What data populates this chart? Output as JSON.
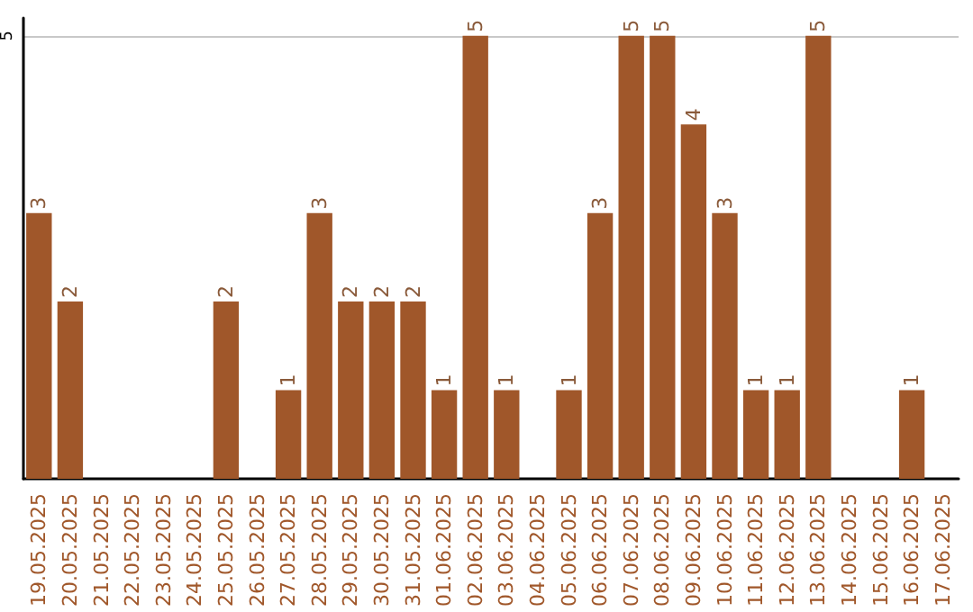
{
  "chart_data": {
    "type": "bar",
    "categories": [
      "19.05.2025",
      "20.05.2025",
      "21.05.2025",
      "22.05.2025",
      "23.05.2025",
      "24.05.2025",
      "25.05.2025",
      "26.05.2025",
      "27.05.2025",
      "28.05.2025",
      "29.05.2025",
      "30.05.2025",
      "31.05.2025",
      "01.06.2025",
      "02.06.2025",
      "03.06.2025",
      "04.06.2025",
      "05.06.2025",
      "06.06.2025",
      "07.06.2025",
      "08.06.2025",
      "09.06.2025",
      "10.06.2025",
      "11.06.2025",
      "12.06.2025",
      "13.06.2025",
      "14.06.2025",
      "15.06.2025",
      "16.06.2025",
      "17.06.2025"
    ],
    "values": [
      3,
      2,
      0,
      0,
      0,
      0,
      2,
      0,
      1,
      3,
      2,
      2,
      2,
      1,
      5,
      1,
      0,
      1,
      3,
      5,
      5,
      4,
      3,
      1,
      1,
      5,
      0,
      0,
      1,
      0
    ],
    "value_labels": [
      "3",
      "2",
      null,
      null,
      null,
      null,
      "2",
      null,
      "1",
      "3",
      "2",
      "2",
      "2",
      "1",
      "5",
      "1",
      null,
      "1",
      "3",
      "5",
      "5",
      "4",
      "3",
      "1",
      "1",
      "5",
      null,
      null,
      "1",
      null
    ],
    "color": "#a0572a",
    "ylim": [
      0,
      5.2
    ],
    "yticks": [
      5
    ],
    "grid": "y"
  }
}
